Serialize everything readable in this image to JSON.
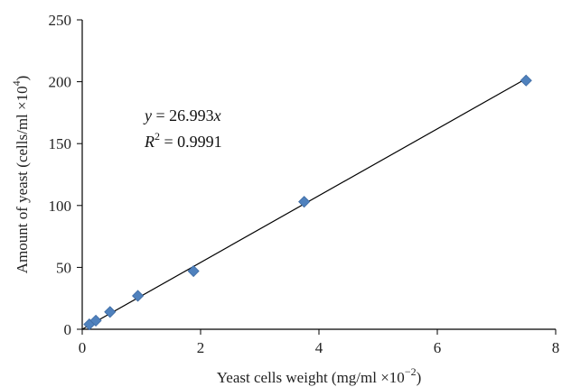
{
  "chart_data": {
    "type": "scatter",
    "title": "",
    "xlabel": "Yeast cells weight (mg/ml ×10",
    "xlabel_sup": "−2",
    "xlabel_end": ")",
    "ylabel": "Amount of yeast (cells/ml ×10",
    "ylabel_sup": "4",
    "ylabel_end": ")",
    "xlim": [
      0,
      8
    ],
    "ylim": [
      0,
      250
    ],
    "xticks": [
      0,
      2,
      4,
      6,
      8
    ],
    "yticks": [
      0,
      50,
      100,
      150,
      200,
      250
    ],
    "grid": false,
    "marker": "diamond",
    "series": [
      {
        "x": [
          0.12,
          0.23,
          0.47,
          0.94,
          1.88,
          3.75,
          7.5
        ],
        "y": [
          4,
          7,
          14,
          27,
          47,
          103,
          201
        ],
        "color": "#4f81bd"
      }
    ],
    "trendline": {
      "slope": 26.993,
      "intercept": 0
    },
    "annotations": {
      "equation_lhs": "y",
      "equation_rhs": " = 26.993",
      "equation_var": "x",
      "r2_label": "R",
      "r2_sup": "2",
      "r2_value": " = 0.9991"
    }
  }
}
